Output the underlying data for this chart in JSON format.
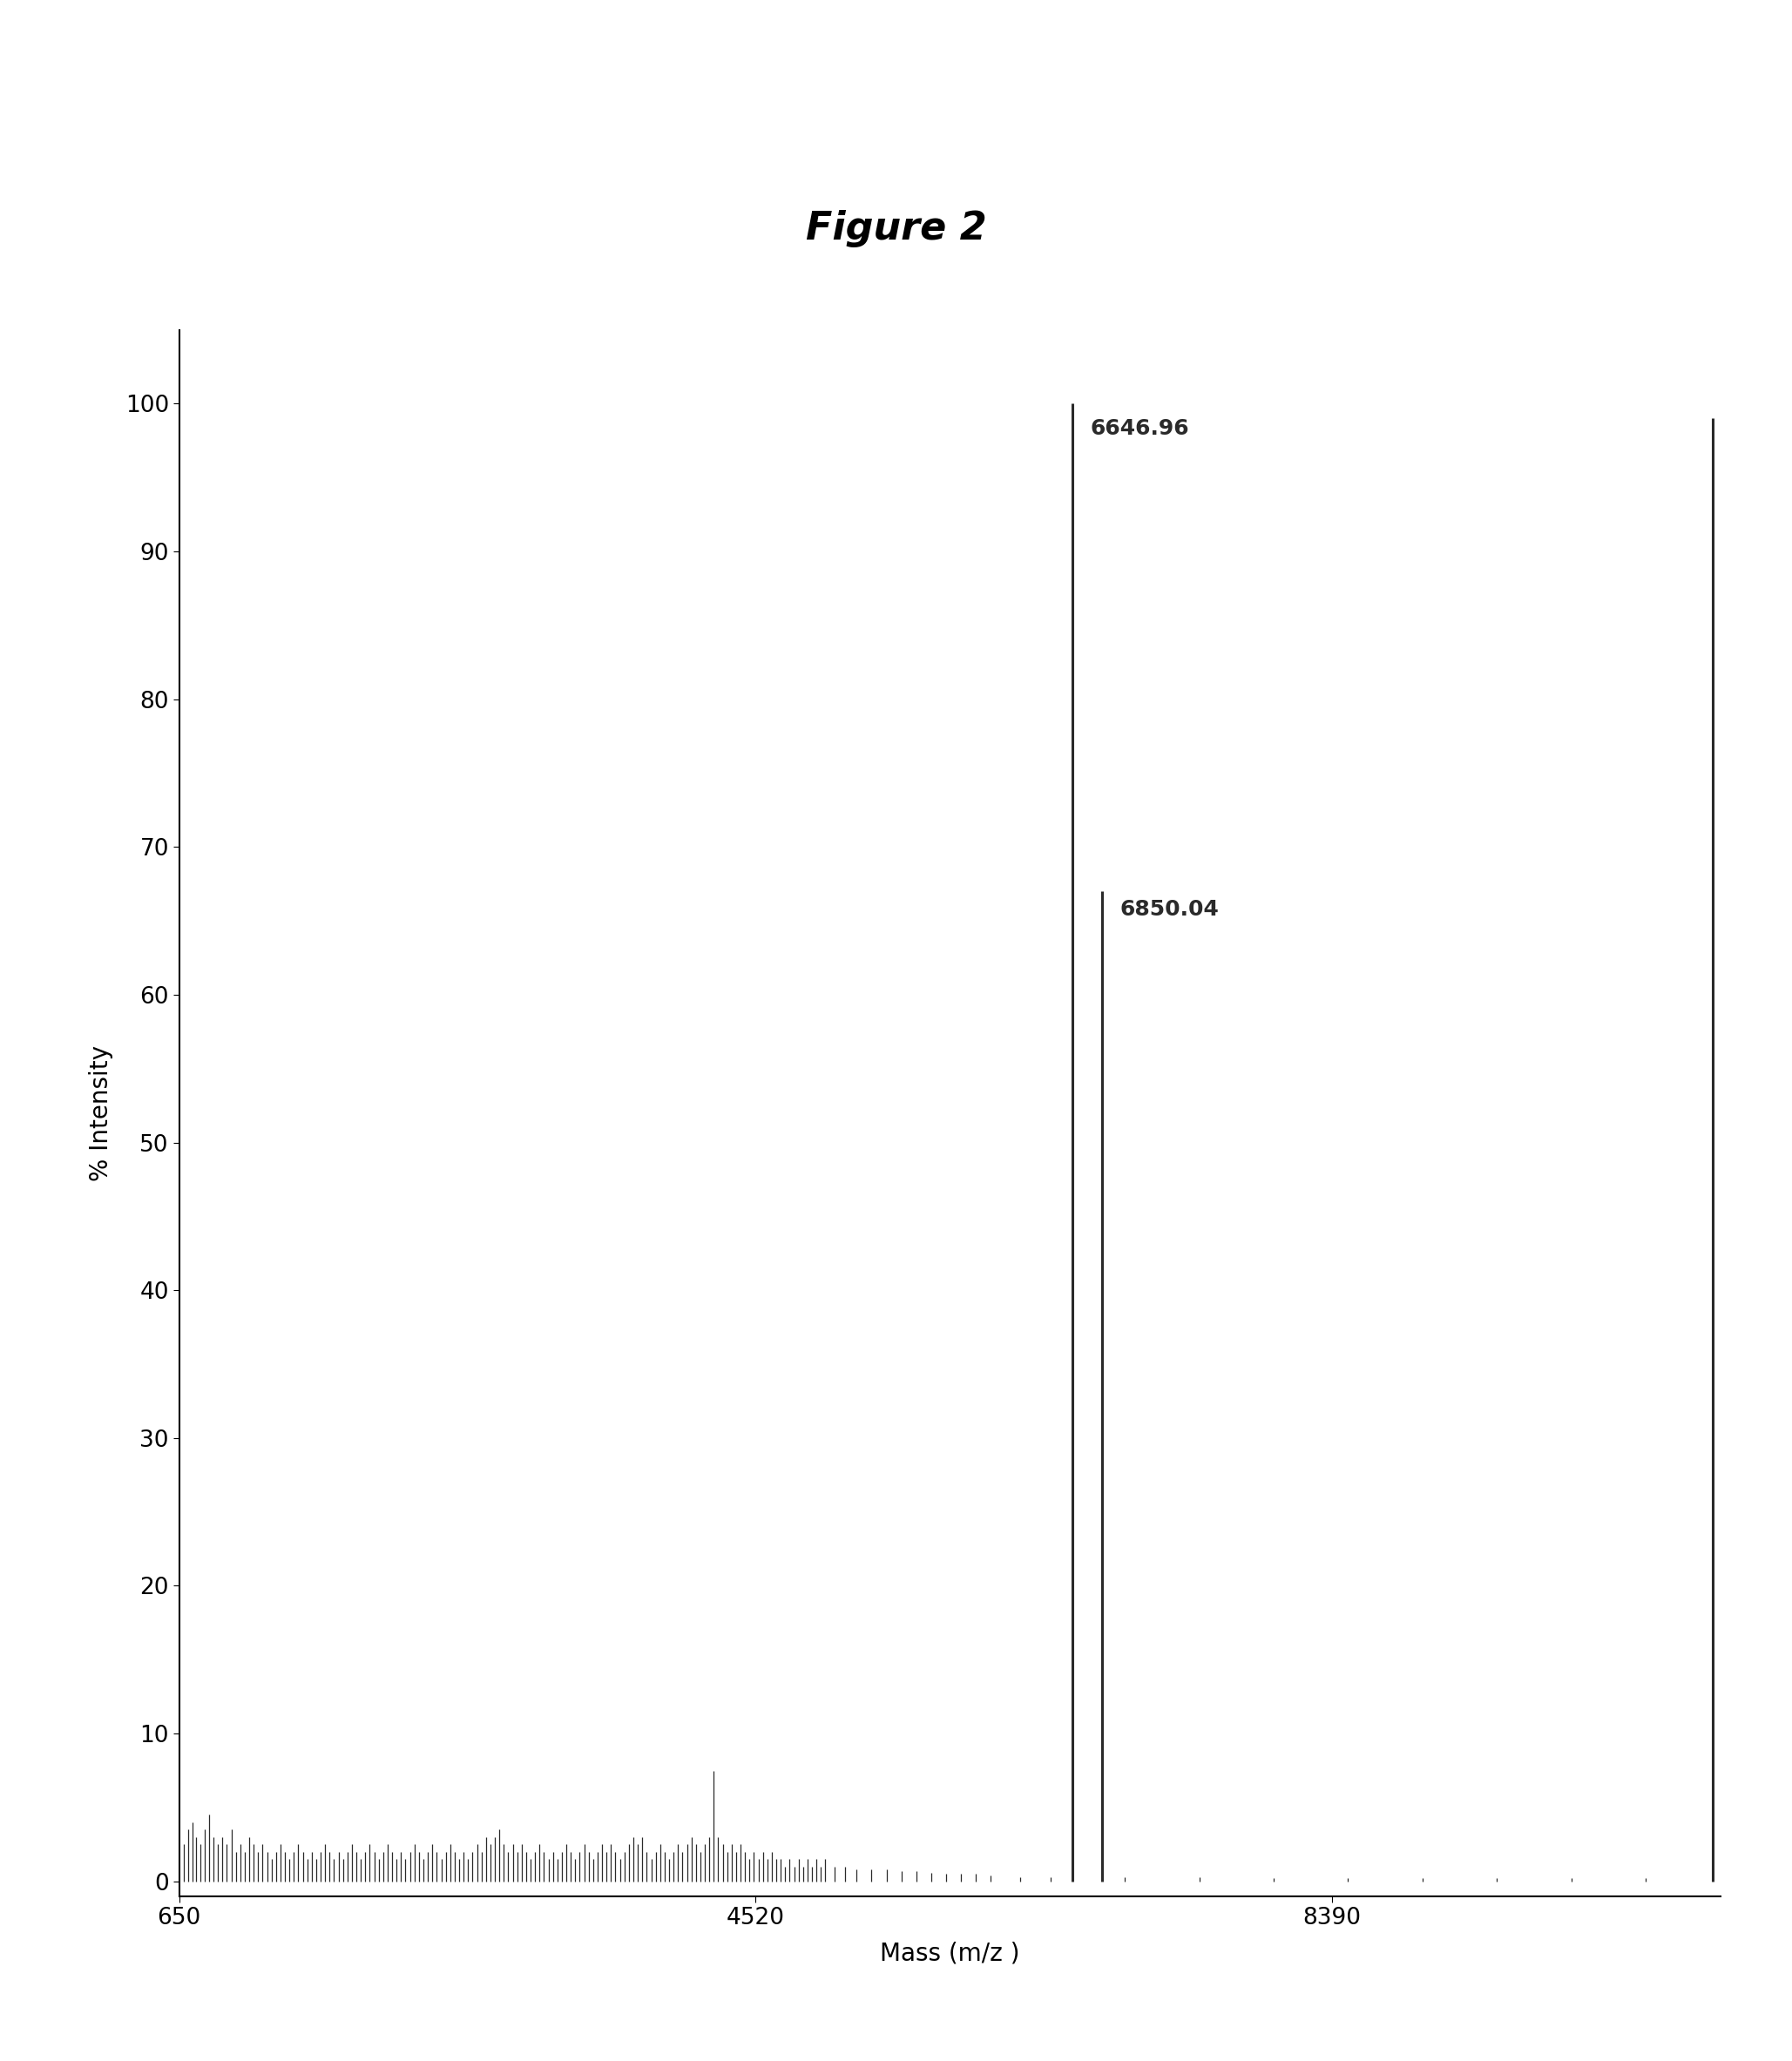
{
  "title": "Figure 2",
  "xlabel": "Mass (m/z )",
  "ylabel": "% Intensity",
  "xlim": [
    650,
    11000
  ],
  "ylim": [
    -1,
    105
  ],
  "xticks": [
    650,
    4520,
    8390
  ],
  "yticks": [
    0,
    10,
    20,
    30,
    40,
    50,
    60,
    70,
    80,
    90,
    100
  ],
  "peak_main_1_x": 6646.96,
  "peak_main_1_y": 100,
  "peak_main_1_label": "6646.96",
  "peak_main_2_x": 6850.04,
  "peak_main_2_y": 67,
  "peak_main_2_label": "6850.04",
  "peak_right_x": 10950,
  "peak_right_y": 99,
  "noise_peaks": [
    [
      680,
      2.5
    ],
    [
      710,
      3.5
    ],
    [
      740,
      4.0
    ],
    [
      760,
      3.0
    ],
    [
      790,
      2.5
    ],
    [
      820,
      3.5
    ],
    [
      850,
      4.5
    ],
    [
      880,
      3.0
    ],
    [
      910,
      2.5
    ],
    [
      940,
      3.0
    ],
    [
      970,
      2.5
    ],
    [
      1000,
      3.5
    ],
    [
      1030,
      2.0
    ],
    [
      1060,
      2.5
    ],
    [
      1090,
      2.0
    ],
    [
      1120,
      3.0
    ],
    [
      1150,
      2.5
    ],
    [
      1180,
      2.0
    ],
    [
      1210,
      2.5
    ],
    [
      1240,
      2.0
    ],
    [
      1270,
      1.5
    ],
    [
      1300,
      2.0
    ],
    [
      1330,
      2.5
    ],
    [
      1360,
      2.0
    ],
    [
      1390,
      1.5
    ],
    [
      1420,
      2.0
    ],
    [
      1450,
      2.5
    ],
    [
      1480,
      2.0
    ],
    [
      1510,
      1.5
    ],
    [
      1540,
      2.0
    ],
    [
      1570,
      1.5
    ],
    [
      1600,
      2.0
    ],
    [
      1630,
      2.5
    ],
    [
      1660,
      2.0
    ],
    [
      1690,
      1.5
    ],
    [
      1720,
      2.0
    ],
    [
      1750,
      1.5
    ],
    [
      1780,
      2.0
    ],
    [
      1810,
      2.5
    ],
    [
      1840,
      2.0
    ],
    [
      1870,
      1.5
    ],
    [
      1900,
      2.0
    ],
    [
      1930,
      2.5
    ],
    [
      1960,
      2.0
    ],
    [
      1990,
      1.5
    ],
    [
      2020,
      2.0
    ],
    [
      2050,
      2.5
    ],
    [
      2080,
      2.0
    ],
    [
      2110,
      1.5
    ],
    [
      2140,
      2.0
    ],
    [
      2170,
      1.5
    ],
    [
      2200,
      2.0
    ],
    [
      2230,
      2.5
    ],
    [
      2260,
      2.0
    ],
    [
      2290,
      1.5
    ],
    [
      2320,
      2.0
    ],
    [
      2350,
      2.5
    ],
    [
      2380,
      2.0
    ],
    [
      2410,
      1.5
    ],
    [
      2440,
      2.0
    ],
    [
      2470,
      2.5
    ],
    [
      2500,
      2.0
    ],
    [
      2530,
      1.5
    ],
    [
      2560,
      2.0
    ],
    [
      2590,
      1.5
    ],
    [
      2620,
      2.0
    ],
    [
      2650,
      2.5
    ],
    [
      2680,
      2.0
    ],
    [
      2710,
      3.0
    ],
    [
      2740,
      2.5
    ],
    [
      2770,
      3.0
    ],
    [
      2800,
      3.5
    ],
    [
      2830,
      2.5
    ],
    [
      2860,
      2.0
    ],
    [
      2890,
      2.5
    ],
    [
      2920,
      2.0
    ],
    [
      2950,
      2.5
    ],
    [
      2980,
      2.0
    ],
    [
      3010,
      1.5
    ],
    [
      3040,
      2.0
    ],
    [
      3070,
      2.5
    ],
    [
      3100,
      2.0
    ],
    [
      3130,
      1.5
    ],
    [
      3160,
      2.0
    ],
    [
      3190,
      1.5
    ],
    [
      3220,
      2.0
    ],
    [
      3250,
      2.5
    ],
    [
      3280,
      2.0
    ],
    [
      3310,
      1.5
    ],
    [
      3340,
      2.0
    ],
    [
      3370,
      2.5
    ],
    [
      3400,
      2.0
    ],
    [
      3430,
      1.5
    ],
    [
      3460,
      2.0
    ],
    [
      3490,
      2.5
    ],
    [
      3520,
      2.0
    ],
    [
      3550,
      2.5
    ],
    [
      3580,
      2.0
    ],
    [
      3610,
      1.5
    ],
    [
      3640,
      2.0
    ],
    [
      3670,
      2.5
    ],
    [
      3700,
      3.0
    ],
    [
      3730,
      2.5
    ],
    [
      3760,
      3.0
    ],
    [
      3790,
      2.0
    ],
    [
      3820,
      1.5
    ],
    [
      3850,
      2.0
    ],
    [
      3880,
      2.5
    ],
    [
      3910,
      2.0
    ],
    [
      3940,
      1.5
    ],
    [
      3970,
      2.0
    ],
    [
      4000,
      2.5
    ],
    [
      4030,
      2.0
    ],
    [
      4060,
      2.5
    ],
    [
      4090,
      3.0
    ],
    [
      4120,
      2.5
    ],
    [
      4150,
      2.0
    ],
    [
      4180,
      2.5
    ],
    [
      4210,
      3.0
    ],
    [
      4240,
      7.5
    ],
    [
      4270,
      3.0
    ],
    [
      4300,
      2.5
    ],
    [
      4330,
      2.0
    ],
    [
      4360,
      2.5
    ],
    [
      4390,
      2.0
    ],
    [
      4420,
      2.5
    ],
    [
      4450,
      2.0
    ],
    [
      4480,
      1.5
    ],
    [
      4510,
      2.0
    ],
    [
      4540,
      1.5
    ],
    [
      4570,
      2.0
    ],
    [
      4600,
      1.5
    ],
    [
      4630,
      2.0
    ],
    [
      4660,
      1.5
    ],
    [
      4690,
      1.5
    ],
    [
      4720,
      1.0
    ],
    [
      4750,
      1.5
    ],
    [
      4780,
      1.0
    ],
    [
      4810,
      1.5
    ],
    [
      4840,
      1.0
    ],
    [
      4870,
      1.5
    ],
    [
      4900,
      1.0
    ],
    [
      4930,
      1.5
    ],
    [
      4960,
      1.0
    ],
    [
      4990,
      1.5
    ],
    [
      5050,
      1.0
    ],
    [
      5120,
      1.0
    ],
    [
      5200,
      0.8
    ],
    [
      5300,
      0.8
    ],
    [
      5400,
      0.8
    ],
    [
      5500,
      0.7
    ],
    [
      5600,
      0.7
    ],
    [
      5700,
      0.6
    ],
    [
      5800,
      0.5
    ],
    [
      5900,
      0.5
    ],
    [
      6000,
      0.5
    ],
    [
      6100,
      0.4
    ],
    [
      6300,
      0.3
    ],
    [
      6500,
      0.3
    ],
    [
      7000,
      0.3
    ],
    [
      7500,
      0.3
    ],
    [
      8000,
      0.2
    ],
    [
      8500,
      0.2
    ],
    [
      9000,
      0.2
    ],
    [
      9500,
      0.2
    ],
    [
      10000,
      0.2
    ],
    [
      10500,
      0.2
    ]
  ],
  "bar_color": "#2a2a2a",
  "background_color": "#ffffff",
  "title_fontsize": 32,
  "axis_label_fontsize": 20,
  "tick_fontsize": 19,
  "annotation_fontsize": 18,
  "figsize": [
    20.57,
    23.66
  ]
}
